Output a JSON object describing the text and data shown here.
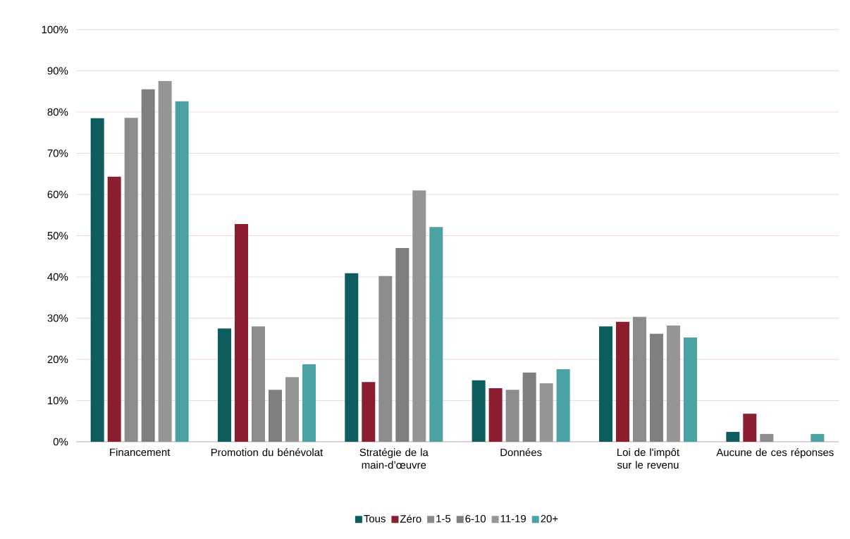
{
  "chart_data": {
    "type": "bar",
    "categories": [
      "Financement",
      "Promotion du bénévolat",
      "Stratégie de la main-d’œuvre",
      "Données",
      "Loi de l'impôt sur le revenu",
      "Aucune de ces réponses"
    ],
    "series": [
      {
        "name": "Tous",
        "color": "#0d5c5e",
        "values": [
          78.5,
          27.5,
          40.9,
          14.9,
          28.0,
          2.4
        ]
      },
      {
        "name": "Zéro",
        "color": "#8b1e2e",
        "values": [
          64.3,
          52.8,
          14.5,
          13.0,
          29.1,
          6.8
        ]
      },
      {
        "name": "1-5",
        "color": "#8c8c8c",
        "values": [
          78.6,
          28.0,
          40.2,
          12.6,
          30.3,
          1.9
        ]
      },
      {
        "name": "6-10",
        "color": "#7f7f7f",
        "values": [
          85.5,
          12.6,
          47.0,
          16.8,
          26.2,
          0
        ]
      },
      {
        "name": "11-19",
        "color": "#969696",
        "values": [
          87.5,
          15.7,
          61.0,
          14.2,
          28.2,
          0
        ]
      },
      {
        "name": "20+",
        "color": "#4aa3a2",
        "values": [
          82.6,
          18.8,
          52.1,
          17.6,
          25.3,
          1.9
        ]
      }
    ],
    "ylim": [
      0,
      100
    ],
    "yticks": [
      {
        "value": 0,
        "label": "0%"
      },
      {
        "value": 10,
        "label": "10%"
      },
      {
        "value": 20,
        "label": "20%"
      },
      {
        "value": 30,
        "label": "30%"
      },
      {
        "value": 40,
        "label": "40%"
      },
      {
        "value": 50,
        "label": "50%"
      },
      {
        "value": 60,
        "label": "60%"
      },
      {
        "value": 70,
        "label": "70%"
      },
      {
        "value": 80,
        "label": "80%"
      },
      {
        "value": 90,
        "label": "90%"
      },
      {
        "value": 100,
        "label": "100%"
      }
    ],
    "grid": "y",
    "legend": "bottom"
  }
}
